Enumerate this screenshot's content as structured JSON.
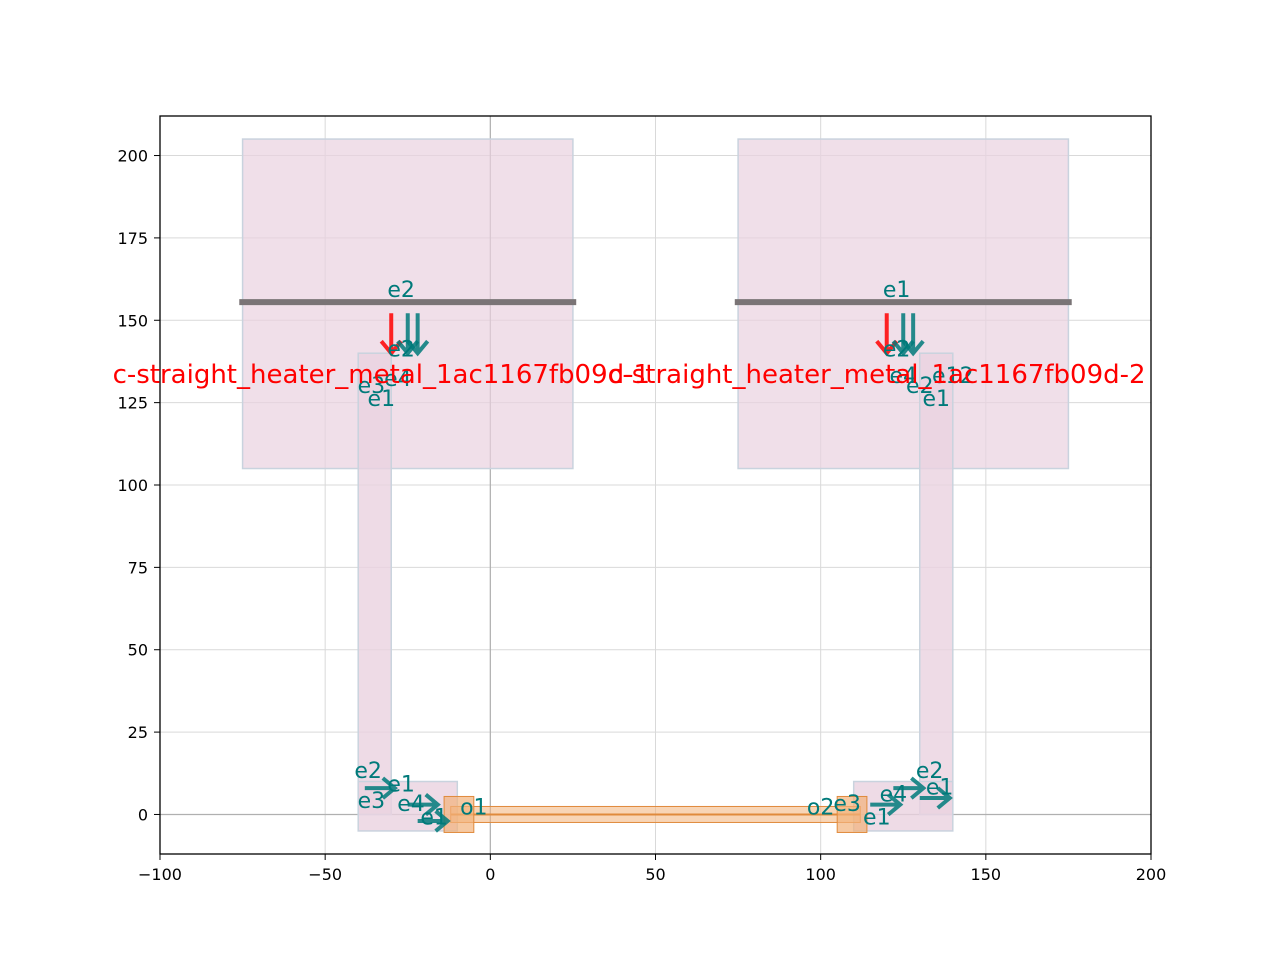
{
  "chart_data": {
    "type": "layout",
    "xlim": [
      -100,
      200
    ],
    "ylim": [
      -12,
      212
    ],
    "x_ticks": [
      -100,
      -50,
      0,
      50,
      100,
      150,
      200
    ],
    "y_ticks": [
      0,
      25,
      50,
      75,
      100,
      125,
      150,
      175,
      200
    ],
    "x_tick_labels": [
      "−100",
      "−50",
      "0",
      "50",
      "100",
      "150",
      "200"
    ],
    "y_tick_labels": [
      "0",
      "25",
      "50",
      "75",
      "100",
      "125",
      "150",
      "175",
      "200"
    ],
    "grid": true,
    "colors": {
      "pad_fill": "#ead2e0",
      "pad_stroke": "#c9d3de",
      "metal_line": "#7a7476",
      "waveguide": "#f2b27a",
      "waveguide_dark": "#e08a3c",
      "port_teal": "#007a7a",
      "label_red": "#ff0000",
      "grid": "#d9d9d9"
    },
    "pads": [
      {
        "name": "pad-left",
        "x0": -75,
        "y0": 105,
        "x1": 25,
        "y1": 205
      },
      {
        "name": "pad-right",
        "x0": 75,
        "y0": 105,
        "x1": 175,
        "y1": 205
      }
    ],
    "metal_routes": [
      {
        "name": "route-left",
        "x0": -40,
        "y0": 0,
        "x1": -30,
        "y1": 140
      },
      {
        "name": "route-right",
        "x0": 130,
        "y0": 0,
        "x1": 140,
        "y1": 140
      }
    ],
    "contact_pads_small": [
      {
        "name": "contact-left",
        "x0": -40,
        "y0": -5,
        "x1": -10,
        "y1": 10
      },
      {
        "name": "contact-right",
        "x0": 110,
        "y0": -5,
        "x1": 140,
        "y1": 10
      }
    ],
    "metal_lines": [
      {
        "name": "metal-line-left",
        "x0": -76,
        "x1": 26,
        "y": 155.5
      },
      {
        "name": "metal-line-right",
        "x0": 74,
        "x1": 176,
        "y": 155.5
      }
    ],
    "waveguide": {
      "x0": -12,
      "x1": 112,
      "y": 0
    },
    "port_labels": [
      {
        "text": "e2",
        "x": -27,
        "y": 157
      },
      {
        "text": "e2",
        "x": -27,
        "y": 139
      },
      {
        "text": "e1",
        "x": -33,
        "y": 124
      },
      {
        "text": "e3",
        "x": -36,
        "y": 128
      },
      {
        "text": "e4",
        "x": -28,
        "y": 130
      },
      {
        "text": "e1",
        "x": 123,
        "y": 157
      },
      {
        "text": "e2",
        "x": 123,
        "y": 139
      },
      {
        "text": "e1",
        "x": 135,
        "y": 124
      },
      {
        "text": "e2",
        "x": 130,
        "y": 128
      },
      {
        "text": "e4",
        "x": 125,
        "y": 131
      },
      {
        "text": "e12",
        "x": 140,
        "y": 131
      },
      {
        "text": "e2",
        "x": -37,
        "y": 11
      },
      {
        "text": "e1",
        "x": -27,
        "y": 7
      },
      {
        "text": "e3",
        "x": -36,
        "y": 2
      },
      {
        "text": "e4",
        "x": -24,
        "y": 1
      },
      {
        "text": "e1",
        "x": -17,
        "y": -3
      },
      {
        "text": "o1",
        "x": -5,
        "y": 0
      },
      {
        "text": "o2",
        "x": 100,
        "y": 0
      },
      {
        "text": "e3",
        "x": 108,
        "y": 1
      },
      {
        "text": "e1",
        "x": 117,
        "y": -3
      },
      {
        "text": "e4",
        "x": 122,
        "y": 4
      },
      {
        "text": "e2",
        "x": 133,
        "y": 11
      },
      {
        "text": "e1",
        "x": 136,
        "y": 6
      }
    ],
    "instance_labels": [
      {
        "text": "c-straight_heater_metal_1ac1167fb09d-1",
        "x": -33,
        "y": 131
      },
      {
        "text": "c-straight_heater_metal_1ac1167fb09d-2",
        "x": 117,
        "y": 131
      }
    ]
  }
}
